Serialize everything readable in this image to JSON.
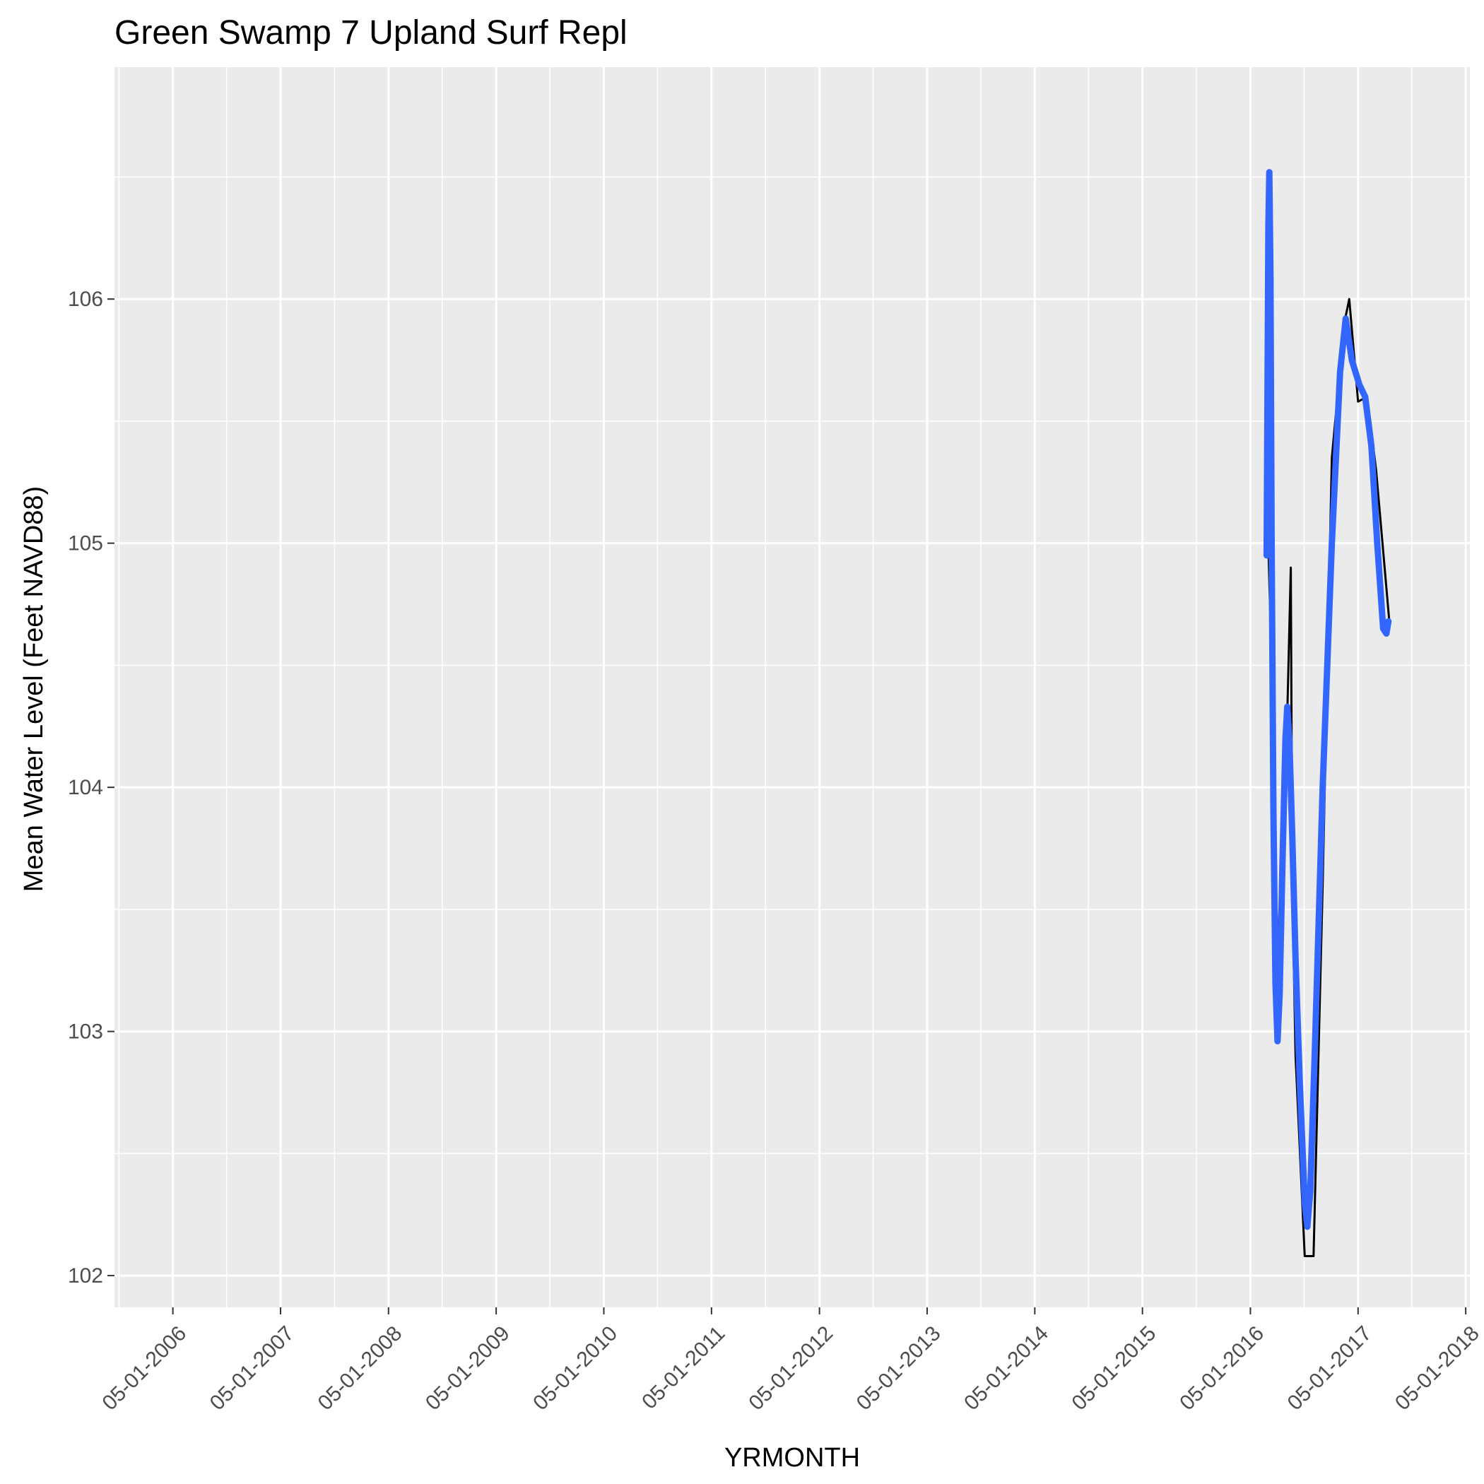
{
  "chart_data": {
    "type": "line",
    "title": "Green Swamp 7 Upland Surf Repl",
    "xlabel": "YRMONTH",
    "ylabel": "Mean Water Level (Feet NAVD88)",
    "x_axis_type": "date",
    "xlim": [
      "2005-10-15",
      "2018-05-15"
    ],
    "ylim": [
      101.87,
      106.95
    ],
    "x_ticks": [
      "2006-05-01",
      "2007-05-01",
      "2008-05-01",
      "2009-05-01",
      "2010-05-01",
      "2011-05-01",
      "2012-05-01",
      "2013-05-01",
      "2014-05-01",
      "2015-05-01",
      "2016-05-01",
      "2017-05-01",
      "2018-05-01"
    ],
    "x_tick_labels": [
      "05-01-2006",
      "05-01-2007",
      "05-01-2008",
      "05-01-2009",
      "05-01-2010",
      "05-01-2011",
      "05-01-2012",
      "05-01-2013",
      "05-01-2014",
      "05-01-2015",
      "05-01-2016",
      "05-01-2017",
      "05-01-2018"
    ],
    "y_ticks": [
      102,
      103,
      104,
      105,
      106
    ],
    "y_tick_labels": [
      "102",
      "103",
      "104",
      "105",
      "106"
    ],
    "grid": true,
    "legend": "none",
    "colors": {
      "panel_background": "#EBEBEB",
      "grid_line": "#FFFFFF",
      "observed": "#000000",
      "smoothed": "#3366FF"
    },
    "series": [
      {
        "style": "thin-black-line",
        "points": [
          {
            "x": "2016-07-01",
            "y": 104.98
          },
          {
            "x": "2016-07-12",
            "y": 104.5
          },
          {
            "x": "2016-07-22",
            "y": 103.7
          },
          {
            "x": "2016-08-01",
            "y": 103.4
          },
          {
            "x": "2016-08-15",
            "y": 103.48
          },
          {
            "x": "2016-09-01",
            "y": 104.2
          },
          {
            "x": "2016-09-15",
            "y": 104.9
          },
          {
            "x": "2016-09-20",
            "y": 103.6
          },
          {
            "x": "2016-10-01",
            "y": 102.9
          },
          {
            "x": "2016-11-01",
            "y": 102.08
          },
          {
            "x": "2016-12-01",
            "y": 102.08
          },
          {
            "x": "2017-01-01",
            "y": 103.6
          },
          {
            "x": "2017-02-01",
            "y": 105.35
          },
          {
            "x": "2017-03-15",
            "y": 105.9
          },
          {
            "x": "2017-04-01",
            "y": 106.0
          },
          {
            "x": "2017-05-01",
            "y": 105.58
          },
          {
            "x": "2017-06-01",
            "y": 105.6
          },
          {
            "x": "2017-07-01",
            "y": 105.3
          },
          {
            "x": "2017-08-15",
            "y": 104.68
          }
        ]
      },
      {
        "style": "thick-blue-smooth",
        "points": [
          {
            "x": "2016-06-25",
            "y": 104.95
          },
          {
            "x": "2016-07-01",
            "y": 106.3
          },
          {
            "x": "2016-07-04",
            "y": 106.52
          },
          {
            "x": "2016-07-08",
            "y": 106.1
          },
          {
            "x": "2016-07-12",
            "y": 105.0
          },
          {
            "x": "2016-07-18",
            "y": 103.9
          },
          {
            "x": "2016-07-25",
            "y": 103.2
          },
          {
            "x": "2016-08-01",
            "y": 102.96
          },
          {
            "x": "2016-08-08",
            "y": 103.15
          },
          {
            "x": "2016-08-18",
            "y": 103.7
          },
          {
            "x": "2016-08-28",
            "y": 104.2
          },
          {
            "x": "2016-09-03",
            "y": 104.33
          },
          {
            "x": "2016-09-10",
            "y": 104.2
          },
          {
            "x": "2016-09-20",
            "y": 103.8
          },
          {
            "x": "2016-10-01",
            "y": 103.3
          },
          {
            "x": "2016-10-15",
            "y": 102.8
          },
          {
            "x": "2016-11-01",
            "y": 102.3
          },
          {
            "x": "2016-11-10",
            "y": 102.2
          },
          {
            "x": "2016-11-20",
            "y": 102.35
          },
          {
            "x": "2016-12-05",
            "y": 102.9
          },
          {
            "x": "2017-01-01",
            "y": 104.0
          },
          {
            "x": "2017-02-01",
            "y": 105.0
          },
          {
            "x": "2017-03-01",
            "y": 105.7
          },
          {
            "x": "2017-03-20",
            "y": 105.92
          },
          {
            "x": "2017-04-10",
            "y": 105.75
          },
          {
            "x": "2017-05-05",
            "y": 105.65
          },
          {
            "x": "2017-05-25",
            "y": 105.6
          },
          {
            "x": "2017-06-15",
            "y": 105.4
          },
          {
            "x": "2017-07-05",
            "y": 105.0
          },
          {
            "x": "2017-07-25",
            "y": 104.65
          },
          {
            "x": "2017-08-05",
            "y": 104.63
          },
          {
            "x": "2017-08-12",
            "y": 104.68
          }
        ]
      }
    ]
  }
}
